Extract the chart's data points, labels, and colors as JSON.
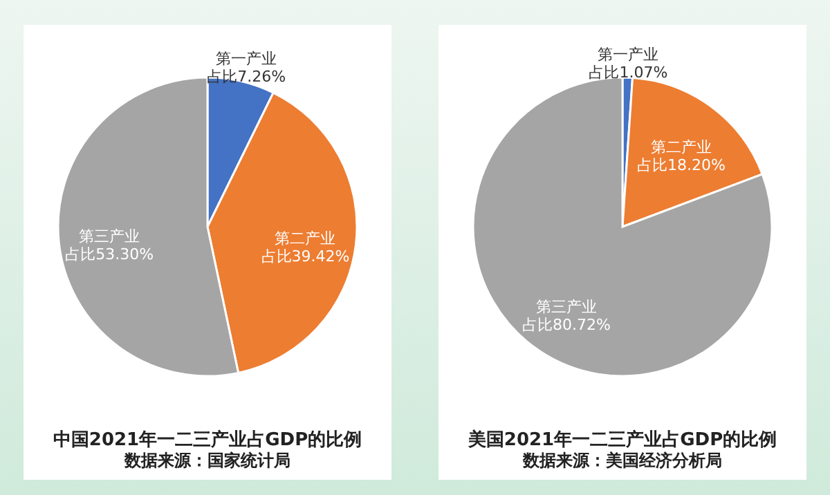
{
  "chart_data": [
    {
      "type": "pie",
      "title": "中国2021年一二三产业占GDP的比例",
      "annotations": [
        "数据来源：国家统计局"
      ],
      "categories": [
        "第一产业",
        "第二产业",
        "第三产业"
      ],
      "values": [
        7.26,
        39.42,
        53.3
      ],
      "value_labels": [
        "占比7.26%",
        "占比39.42%",
        "占比53.30%"
      ],
      "colors": [
        "#4472c4",
        "#ed7d31",
        "#a5a5a5"
      ]
    },
    {
      "type": "pie",
      "title": "美国2021年一二三产业占GDP的比例",
      "annotations": [
        "数据来源：美国经济分析局"
      ],
      "categories": [
        "第一产业",
        "第二产业",
        "第三产业"
      ],
      "values": [
        1.07,
        18.2,
        80.72
      ],
      "value_labels": [
        "占比1.07%",
        "占比18.20%",
        "占比80.72%"
      ],
      "colors": [
        "#4472c4",
        "#ed7d31",
        "#a5a5a5"
      ]
    }
  ]
}
